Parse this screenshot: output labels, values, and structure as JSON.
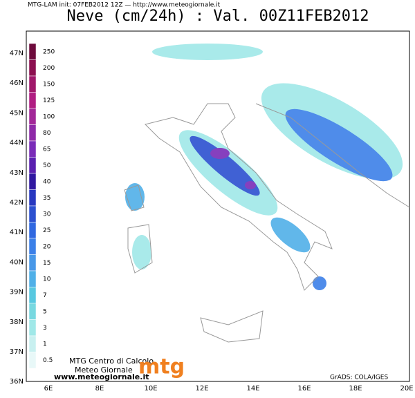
{
  "header": {
    "info": "MTG-LAM init: 07FEB2012 12Z — http://www.meteogiornale.it",
    "title": "Neve (cm/24h) : Val. 00Z11FEB2012"
  },
  "latitude_labels": [
    "47N",
    "46N",
    "45N",
    "44N",
    "43N",
    "42N",
    "41N",
    "40N",
    "39N",
    "38N",
    "37N",
    "36N"
  ],
  "longitude_labels": [
    "6E",
    "8E",
    "10E",
    "12E",
    "14E",
    "16E",
    "18E",
    "20E"
  ],
  "colorbar": {
    "labels": [
      "250",
      "200",
      "150",
      "125",
      "100",
      "80",
      "65",
      "50",
      "40",
      "35",
      "30",
      "25",
      "20",
      "15",
      "10",
      "7",
      "5",
      "3",
      "1",
      "0.5"
    ],
    "colors": [
      "#6e0b3c",
      "#8c1050",
      "#a0186a",
      "#b01e82",
      "#a22898",
      "#8e2aa8",
      "#7a2cb8",
      "#5a20b0",
      "#3018a0",
      "#2838c0",
      "#2c50d0",
      "#3068e0",
      "#3c80e8",
      "#4898e8",
      "#50b0e8",
      "#58c8e0",
      "#78d8e0",
      "#a0e8e8",
      "#c8f0f0",
      "#e8f8f8"
    ]
  },
  "logo": {
    "line1": "MTG Centro di Calcolo",
    "line2": "Meteo Giornale",
    "url": "www.meteogiornale.it",
    "mark": "mtg"
  },
  "credit": "GrADS: COLA/IGES"
}
